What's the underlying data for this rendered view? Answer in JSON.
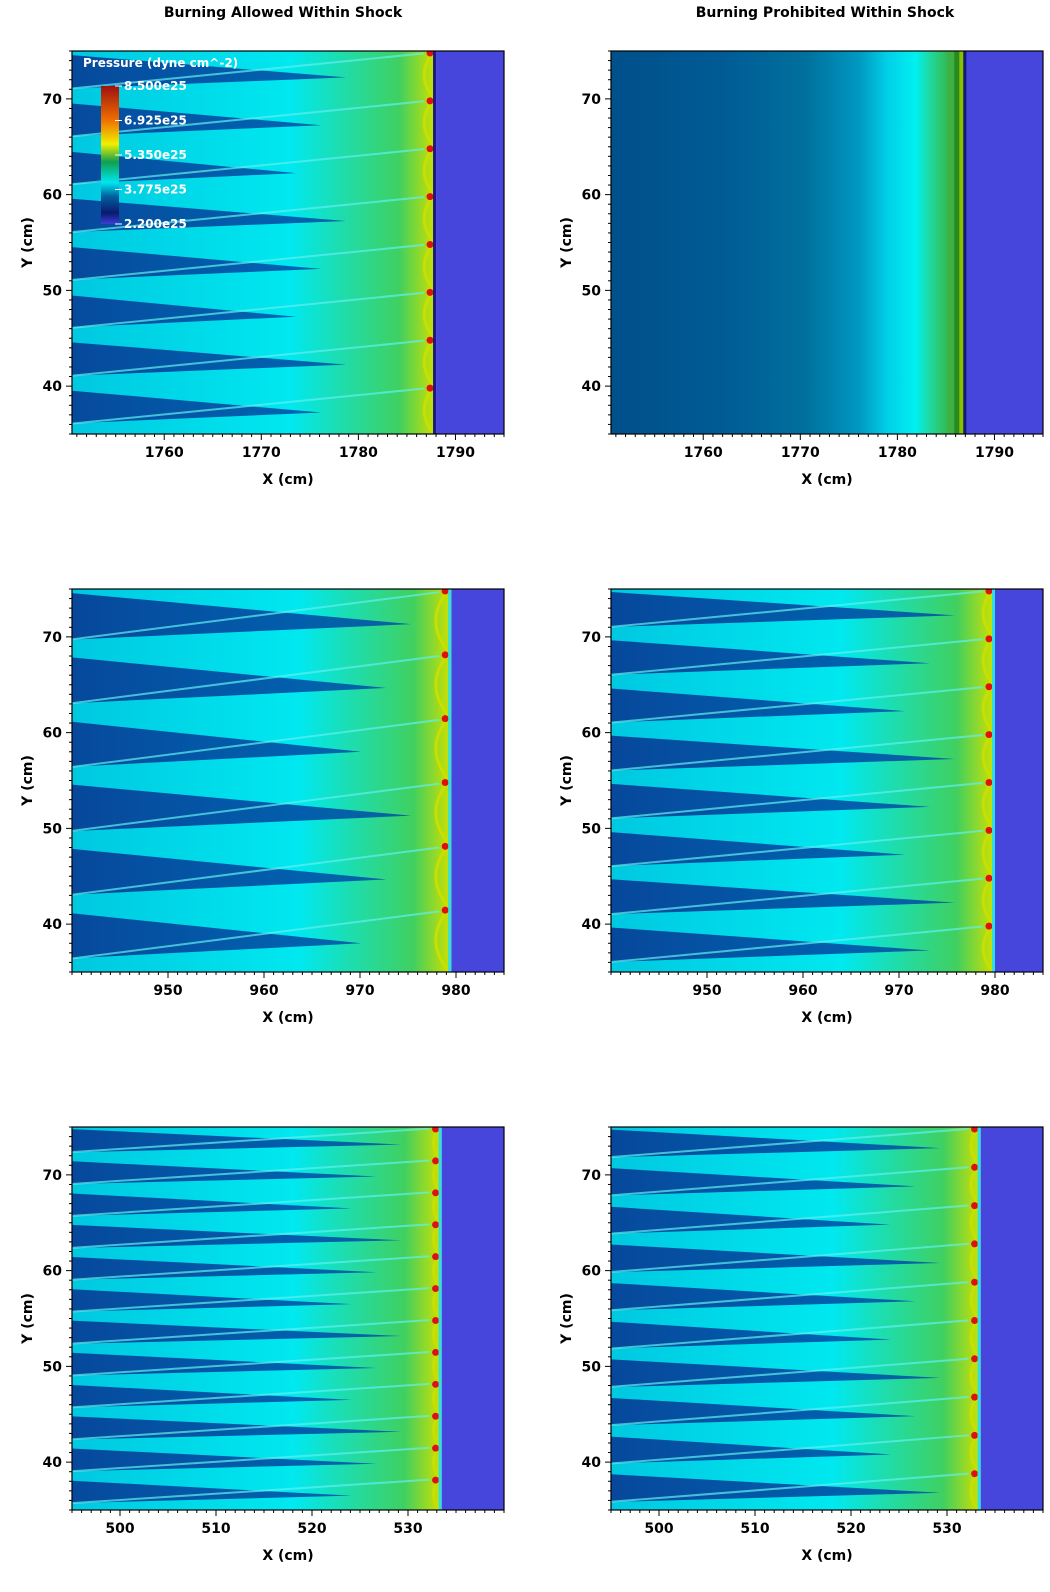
{
  "figure": {
    "column_titles": [
      "Burning Allowed Within Shock",
      "Burning Prohibited Within Shock"
    ]
  },
  "colormap": {
    "title": "Pressure (dyne cm^-2)",
    "labels": [
      "8.500e25",
      "6.925e25",
      "5.350e25",
      "3.775e25",
      "2.200e25"
    ],
    "range": [
      2.2e+25,
      8.5e+25
    ],
    "stops": [
      {
        "t": 0.0,
        "color": "#3b3fd6"
      },
      {
        "t": 0.08,
        "color": "#0a1a6e"
      },
      {
        "t": 0.2,
        "color": "#0060a0"
      },
      {
        "t": 0.3,
        "color": "#00e6f0"
      },
      {
        "t": 0.45,
        "color": "#10a050"
      },
      {
        "t": 0.58,
        "color": "#f0f000"
      },
      {
        "t": 0.75,
        "color": "#f07000"
      },
      {
        "t": 1.0,
        "color": "#a01010"
      }
    ],
    "unburned_color": "#4646dc"
  },
  "chart_data": [
    {
      "type": "heatmap",
      "panel": "top-left",
      "title": "Burning Allowed Within Shock",
      "xlabel": "X (cm)",
      "ylabel": "Y (cm)",
      "xlim": [
        1750.5,
        1795
      ],
      "ylim": [
        35,
        75
      ],
      "xticks": [
        1760,
        1770,
        1780,
        1790
      ],
      "yticks": [
        40,
        50,
        60,
        70
      ],
      "front_x": 1788,
      "cell_count": 8,
      "style": "coarse",
      "has_colorbar": true
    },
    {
      "type": "heatmap",
      "panel": "top-right",
      "title": "Burning Prohibited Within Shock",
      "xlabel": "X (cm)",
      "ylabel": "Y (cm)",
      "xlim": [
        1750.5,
        1795
      ],
      "ylim": [
        35,
        75
      ],
      "xticks": [
        1760,
        1770,
        1780,
        1790
      ],
      "yticks": [
        40,
        50,
        60,
        70
      ],
      "front_x": 1787,
      "style": "planar"
    },
    {
      "type": "heatmap",
      "panel": "middle-left",
      "xlabel": "X (cm)",
      "ylabel": "Y (cm)",
      "xlim": [
        940,
        985
      ],
      "ylim": [
        35,
        75
      ],
      "xticks": [
        950,
        960,
        970,
        980
      ],
      "yticks": [
        40,
        50,
        60,
        70
      ],
      "front_x": 979.5,
      "cell_count": 6,
      "style": "detonation"
    },
    {
      "type": "heatmap",
      "panel": "middle-right",
      "xlabel": "X (cm)",
      "ylabel": "Y (cm)",
      "xlim": [
        940,
        985
      ],
      "ylim": [
        35,
        75
      ],
      "xticks": [
        950,
        960,
        970,
        980
      ],
      "yticks": [
        40,
        50,
        60,
        70
      ],
      "front_x": 980,
      "cell_count": 8,
      "style": "detonation"
    },
    {
      "type": "heatmap",
      "panel": "bottom-left",
      "xlabel": "X (cm)",
      "ylabel": "Y (cm)",
      "xlim": [
        495,
        540
      ],
      "ylim": [
        35,
        75
      ],
      "xticks": [
        500,
        510,
        520,
        530
      ],
      "yticks": [
        40,
        50,
        60,
        70
      ],
      "front_x": 533.5,
      "cell_count": 12,
      "style": "detonation"
    },
    {
      "type": "heatmap",
      "panel": "bottom-right",
      "xlabel": "X (cm)",
      "ylabel": "Y (cm)",
      "xlim": [
        495,
        540
      ],
      "ylim": [
        35,
        75
      ],
      "xticks": [
        500,
        510,
        520,
        530
      ],
      "yticks": [
        40,
        50,
        60,
        70
      ],
      "front_x": 533.5,
      "cell_count": 10,
      "style": "detonation"
    }
  ]
}
